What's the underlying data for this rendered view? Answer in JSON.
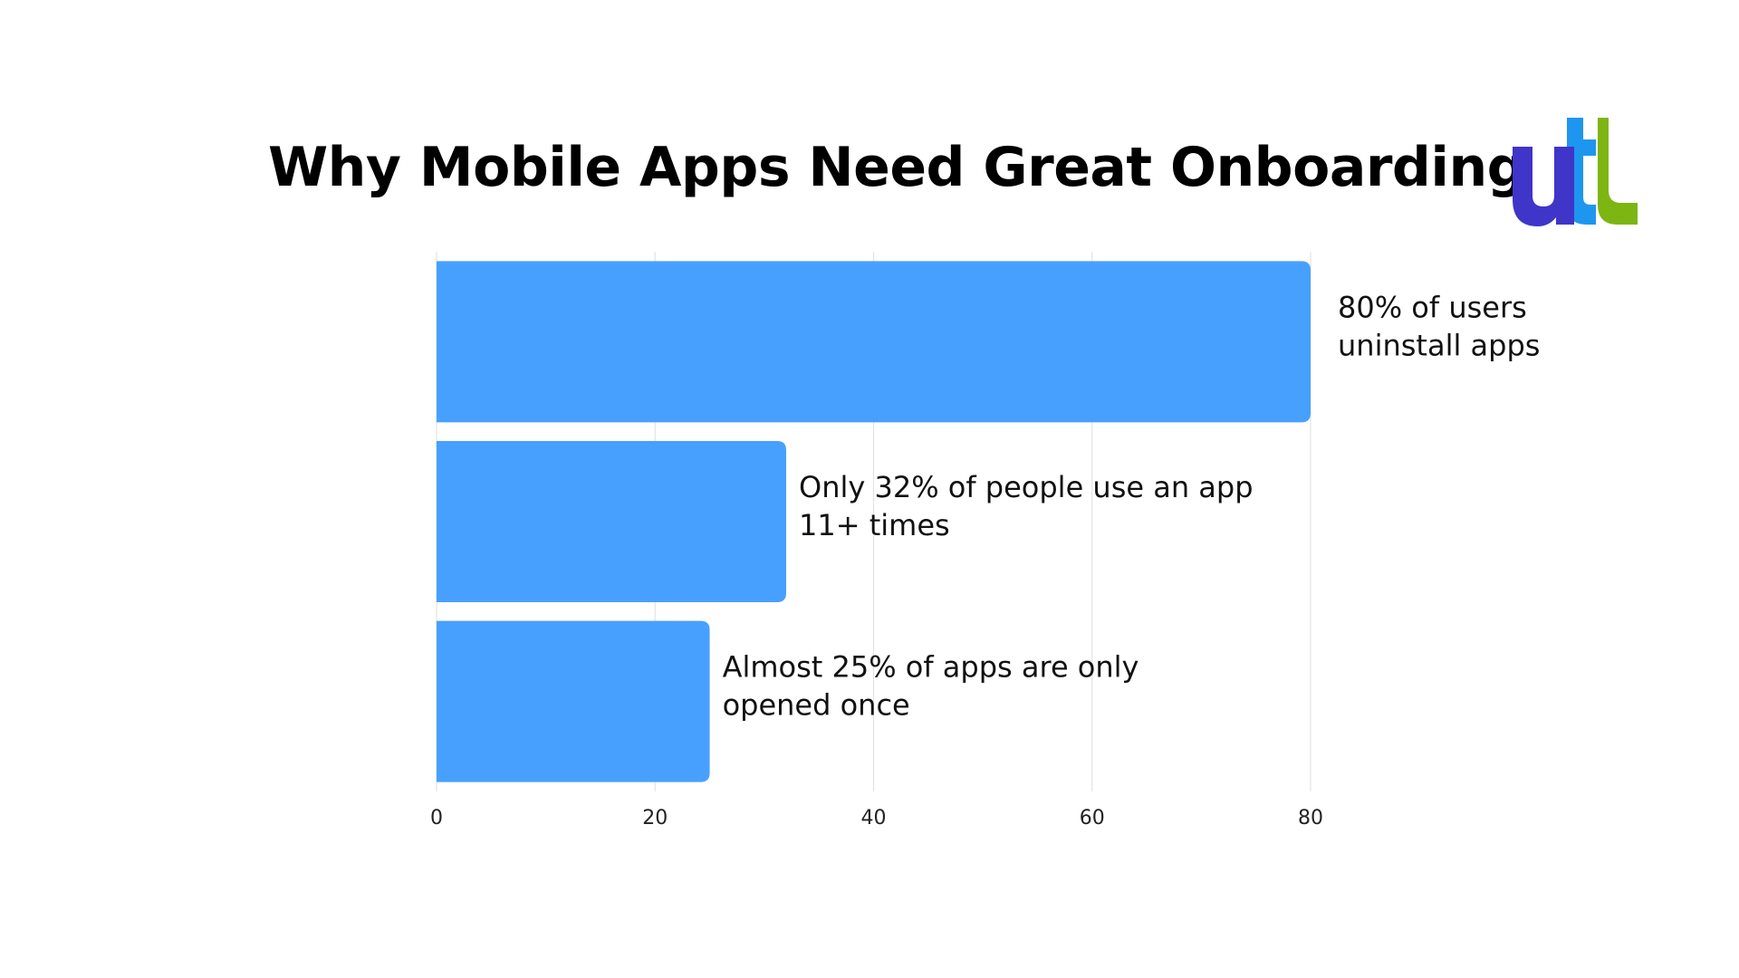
{
  "chart_data": {
    "type": "bar",
    "orientation": "horizontal",
    "title": "Why Mobile Apps Need Great Onboarding",
    "xlabel": "",
    "ylabel": "",
    "xlim": [
      0,
      80
    ],
    "ticks": [
      "0",
      "20",
      "40",
      "60",
      "80"
    ],
    "grid": "vertical",
    "bar_color": "#48A0FE",
    "bars": [
      {
        "value": 80,
        "label_lines": [
          "80% of users",
          "uninstall apps"
        ]
      },
      {
        "value": 32,
        "label_lines": [
          "Only 32% of people use an app",
          "11+ times"
        ]
      },
      {
        "value": 25,
        "label_lines": [
          "Almost 25% of apps are only",
          "opened once"
        ]
      }
    ]
  },
  "logo": {
    "name": "utl-logo",
    "colors": [
      "#3F35C8",
      "#1E96F0",
      "#7DB612"
    ]
  }
}
